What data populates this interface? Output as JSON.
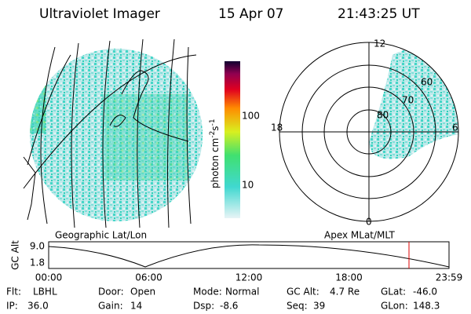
{
  "header": {
    "instrument": "Ultraviolet Imager",
    "date": "15 Apr 07",
    "time": "21:43:25 UT"
  },
  "colorbar": {
    "unit": "photon cm",
    "exp1": "-2",
    "mid": "s",
    "exp2": "-1",
    "ticks": [
      "100",
      "10"
    ]
  },
  "left_panel": {
    "caption": "Geographic Lat/Lon"
  },
  "right_panel": {
    "caption": "Apex MLat/MLT",
    "mlt_labels": [
      "12",
      "18",
      "6",
      "0"
    ],
    "lat_labels": [
      "80",
      "70",
      "60"
    ]
  },
  "altitude_plot": {
    "ylabel": "GC Alt",
    "yticks": [
      "9.0",
      "1.8"
    ],
    "xticks": [
      "00:00",
      "06:00",
      "12:00",
      "18:00",
      "23:59"
    ]
  },
  "footer": [
    {
      "label": "Flt:",
      "value": "LBHL"
    },
    {
      "label": "IP:",
      "value": "36.0"
    },
    {
      "label": "Door:",
      "value": "Open"
    },
    {
      "label": "Gain:",
      "value": "14"
    },
    {
      "label": "Mode:",
      "value": "Normal"
    },
    {
      "label": "Dsp:",
      "value": "-8.6"
    },
    {
      "label": "GC Alt:",
      "value": "4.7 Re"
    },
    {
      "label": "Seq:",
      "value": "39"
    },
    {
      "label": "GLat:",
      "value": "-46.0"
    },
    {
      "label": "GLon:",
      "value": "148.3"
    }
  ]
}
